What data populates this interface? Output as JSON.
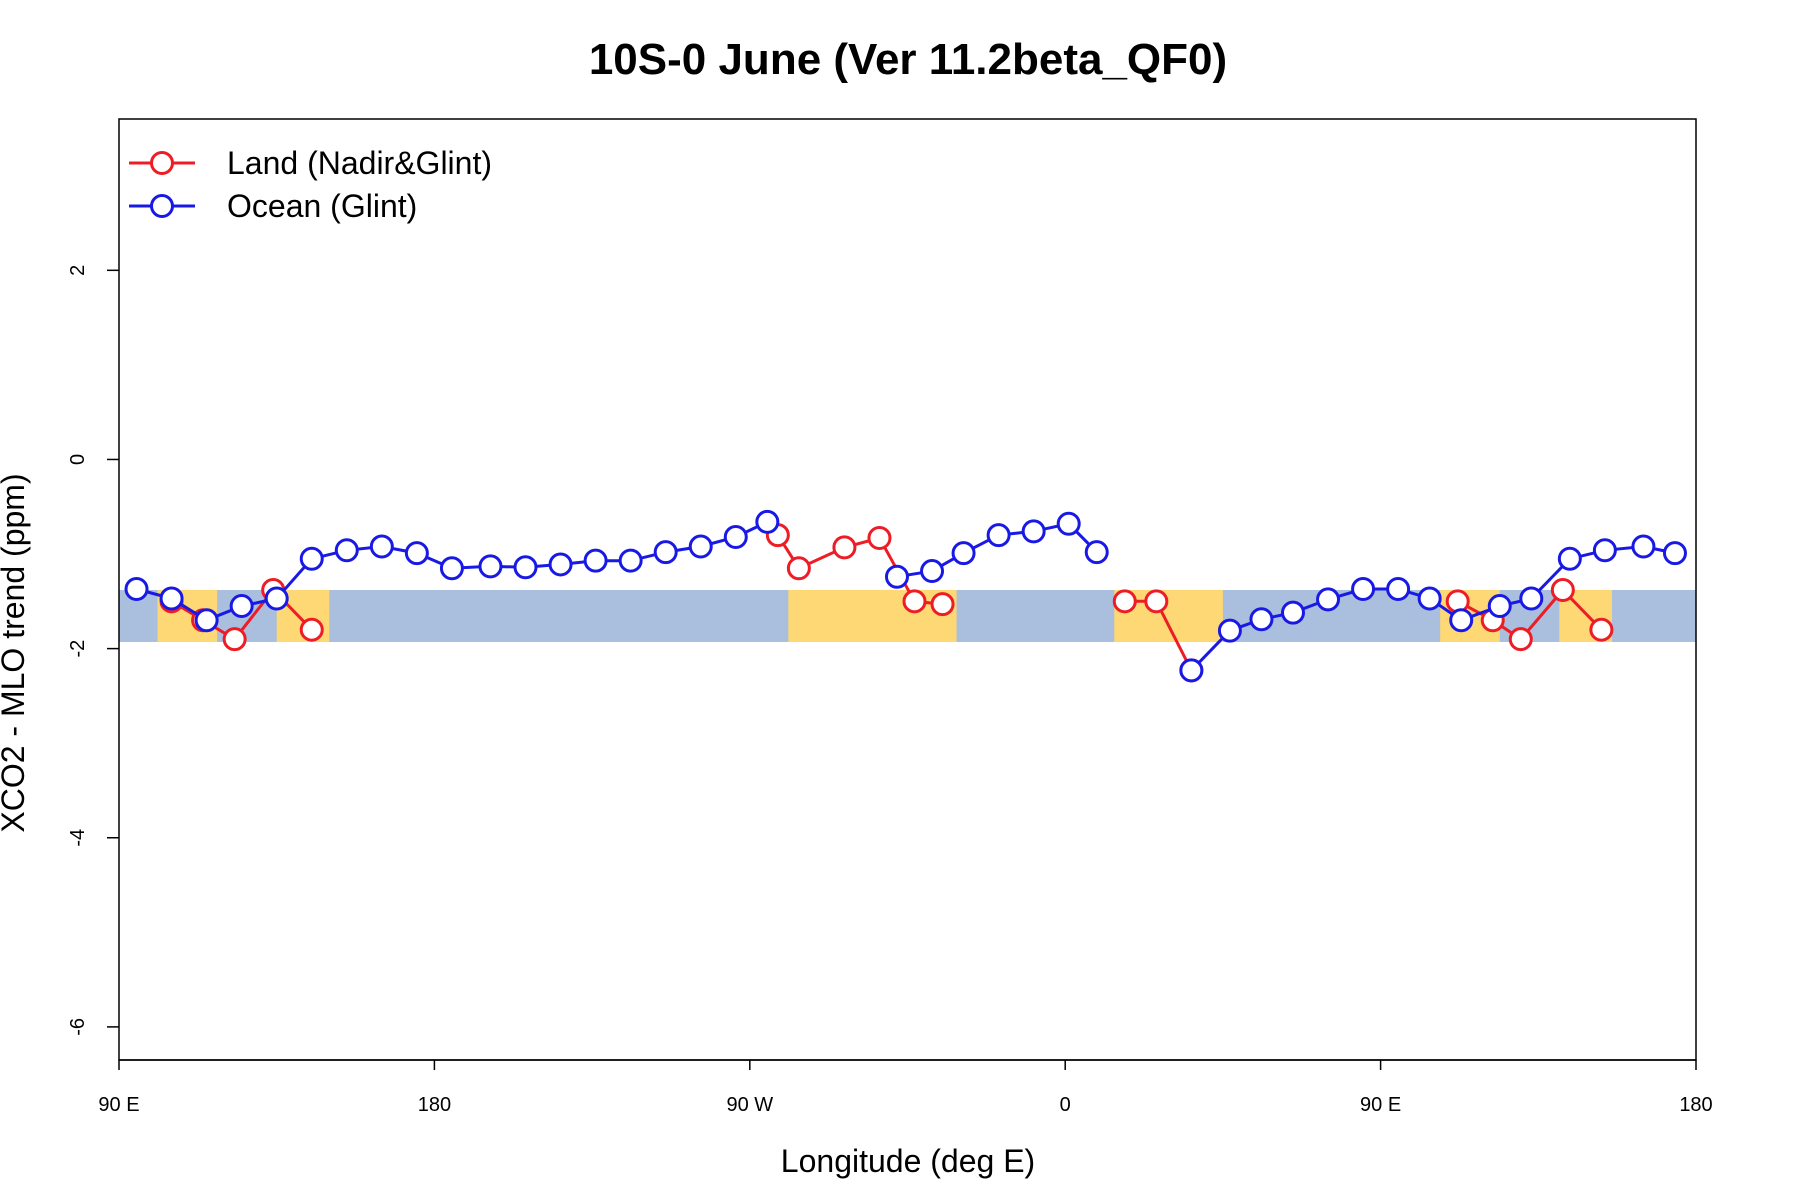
{
  "chart_data": {
    "type": "line",
    "title": "10S-0 June (Ver 11.2beta_QF0)",
    "xlabel": "Longitude (deg E)",
    "ylabel": "XCO2 - MLO trend (ppm)",
    "xlim": [
      90,
      540
    ],
    "ylim": [
      -6.35,
      3.6
    ],
    "x_ticks": [
      {
        "value": 90,
        "label": "90 E"
      },
      {
        "value": 180,
        "label": "180"
      },
      {
        "value": 270,
        "label": "90 W"
      },
      {
        "value": 360,
        "label": "0"
      },
      {
        "value": 450,
        "label": "90 E"
      },
      {
        "value": 540,
        "label": "180"
      }
    ],
    "y_ticks": [
      {
        "value": 2,
        "label": "2"
      },
      {
        "value": 0,
        "label": "0"
      },
      {
        "value": -2,
        "label": "-2"
      },
      {
        "value": -4,
        "label": "-4"
      },
      {
        "value": -6,
        "label": "-6"
      }
    ],
    "latitude_band": {
      "y_top": -1.38,
      "y_bottom": -1.93,
      "ocean_color": "#a9bfdd",
      "land_color": "#fdd875"
    },
    "land_segments": [
      [
        101,
        118
      ],
      [
        135,
        150
      ],
      [
        281,
        329
      ],
      [
        374,
        405
      ],
      [
        467,
        484
      ],
      [
        501,
        516
      ]
    ],
    "legend": {
      "position": "top-left"
    },
    "series": [
      {
        "name": "Land (Nadir&Glint)",
        "color": "#ee1c25",
        "segments": [
          {
            "x": [
              105,
              114,
              123,
              134,
              145
            ],
            "y": [
              -1.5,
              -1.7,
              -1.9,
              -1.38,
              -1.8
            ]
          },
          {
            "x": [
              278,
              284,
              297,
              307,
              317,
              325
            ],
            "y": [
              -0.8,
              -1.15,
              -0.93,
              -0.83,
              -1.5,
              -1.53
            ]
          },
          {
            "x": [
              377,
              386,
              396
            ],
            "y": [
              -1.5,
              -1.5,
              -2.23
            ]
          },
          {
            "x": [
              472,
              482,
              490,
              502,
              513
            ],
            "y": [
              -1.5,
              -1.7,
              -1.9,
              -1.38,
              -1.8
            ]
          }
        ]
      },
      {
        "name": "Ocean (Glint)",
        "color": "#1919e6",
        "segments": [
          {
            "x": [
              95,
              105,
              115,
              125,
              135,
              145,
              155,
              165,
              175,
              185,
              196,
              206,
              216,
              226,
              236,
              246,
              256,
              266,
              275
            ],
            "y": [
              -1.37,
              -1.47,
              -1.7,
              -1.55,
              -1.47,
              -1.05,
              -0.96,
              -0.92,
              -0.99,
              -1.15,
              -1.13,
              -1.14,
              -1.11,
              -1.07,
              -1.07,
              -0.98,
              -0.92,
              -0.82,
              -0.66
            ]
          },
          {
            "x": [
              312,
              322,
              331,
              341,
              351,
              361,
              369
            ],
            "y": [
              -1.24,
              -1.18,
              -0.99,
              -0.8,
              -0.76,
              -0.68,
              -0.98
            ]
          },
          {
            "x": [
              396,
              407,
              416,
              425,
              435,
              445,
              455,
              464,
              473,
              484,
              493,
              504,
              514,
              525,
              534
            ],
            "y": [
              -2.23,
              -1.81,
              -1.69,
              -1.62,
              -1.48,
              -1.37,
              -1.37,
              -1.47,
              -1.7,
              -1.55,
              -1.47,
              -1.05,
              -0.96,
              -0.92,
              -0.99
            ]
          }
        ]
      }
    ]
  }
}
